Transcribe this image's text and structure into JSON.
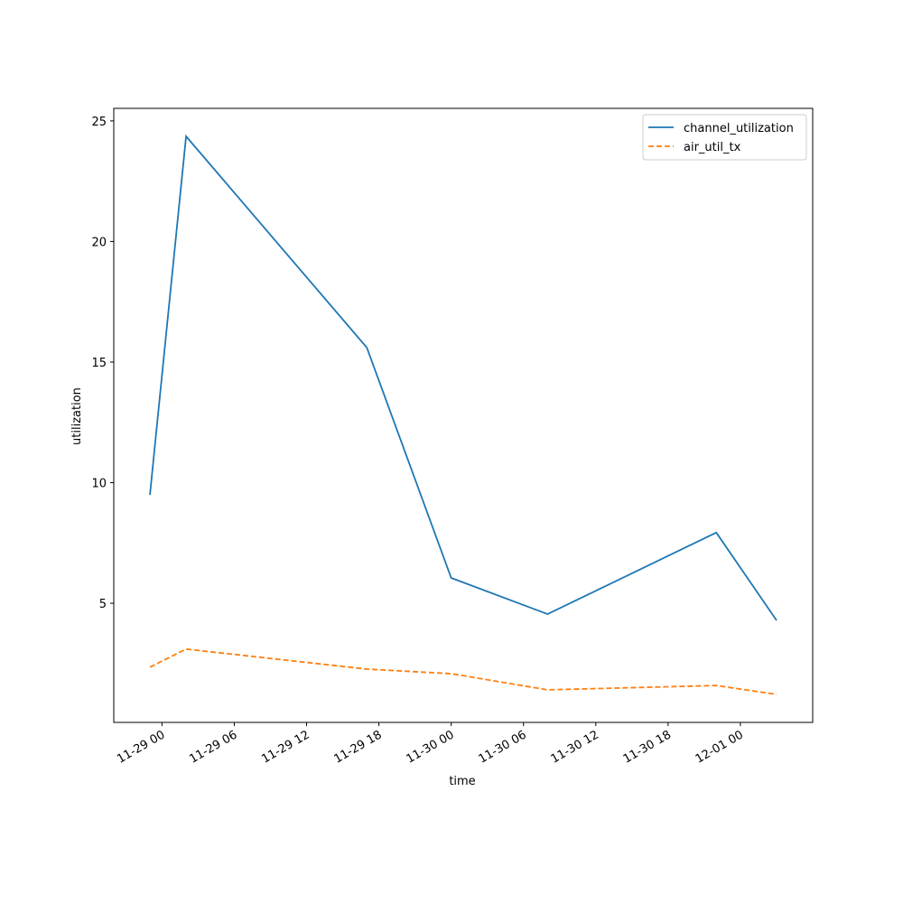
{
  "chart_data": {
    "type": "line",
    "xlabel": "time",
    "ylabel": "utilization",
    "x": [
      "11-28 23",
      "11-29 02",
      "11-29 17",
      "11-30 00",
      "11-30 08",
      "11-30 22",
      "12-01 03"
    ],
    "series": [
      {
        "name": "channel_utilization",
        "color": "#1f77b4",
        "style": "solid",
        "values": [
          9.49,
          24.36,
          15.6,
          6.05,
          4.55,
          7.93,
          4.29
        ]
      },
      {
        "name": "air_util_tx",
        "color": "#ff7f0e",
        "style": "dashed",
        "values": [
          2.35,
          3.1,
          2.27,
          2.08,
          1.41,
          1.59,
          1.22
        ]
      }
    ],
    "xlim": [
      "11-28 20",
      "12-01 06"
    ],
    "xticks": [
      "11-29 00",
      "11-29 06",
      "11-29 12",
      "11-29 18",
      "11-30 00",
      "11-30 06",
      "11-30 12",
      "11-30 18",
      "12-01 00"
    ],
    "ylim": [
      0.06,
      25.52
    ],
    "yticks": [
      5,
      10,
      15,
      20,
      25
    ],
    "legend": "upper right"
  }
}
